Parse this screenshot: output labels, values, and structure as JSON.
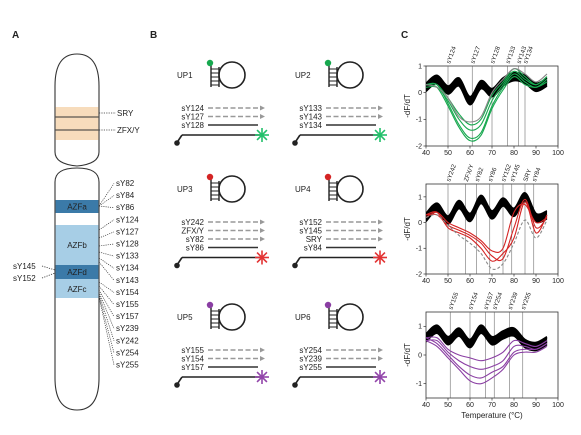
{
  "panel_a": {
    "letter": "A",
    "left_labels": [
      "sY145",
      "sY152"
    ],
    "band_labels": [
      "SRY",
      "ZFX/Y"
    ],
    "regions": [
      "AZFa",
      "AZFb",
      "AZFd",
      "AZFc"
    ],
    "marker_labels": [
      "sY82",
      "sY84",
      "sY86",
      "sY124",
      "sY127",
      "sY128",
      "sY133",
      "sY134",
      "sY143",
      "sY154",
      "sY155",
      "sY157",
      "sY239",
      "sY242",
      "sY254",
      "sY255"
    ],
    "colors": {
      "band": "#f7dcbc",
      "azf_light": "#a7cee6",
      "azf_dark": "#3b7aa8",
      "outline": "#333333"
    }
  },
  "panel_b": {
    "letter": "B",
    "probes": [
      {
        "name": "UP1",
        "color": "#17a84f",
        "star": "#22c06a",
        "targets": [
          "sY124",
          "sY127",
          "sY128"
        ]
      },
      {
        "name": "UP2",
        "color": "#17a84f",
        "star": "#22c06a",
        "targets": [
          "sY133",
          "sY143",
          "sY134"
        ]
      },
      {
        "name": "UP3",
        "color": "#d42424",
        "star": "#e33333",
        "targets": [
          "sY242",
          "ZFX/Y",
          "sY82",
          "sY86"
        ]
      },
      {
        "name": "UP4",
        "color": "#d42424",
        "star": "#e33333",
        "targets": [
          "sY152",
          "sY145",
          "SRY",
          "sY84"
        ]
      },
      {
        "name": "UP5",
        "color": "#8a3ea3",
        "star": "#9245aa",
        "targets": [
          "sY155",
          "sY154",
          "sY157"
        ]
      },
      {
        "name": "UP6",
        "color": "#8a3ea3",
        "star": "#9245aa",
        "targets": [
          "sY254",
          "sY239",
          "sY255"
        ]
      }
    ]
  },
  "panel_c": {
    "letter": "C",
    "chart_data": [
      {
        "type": "line",
        "ylabel": "-dF/dT",
        "xlim": [
          40,
          100
        ],
        "xticks": [
          40,
          50,
          60,
          70,
          80,
          90,
          100
        ],
        "markers": [
          {
            "label": "sY124",
            "x": 50
          },
          {
            "label": "sY127",
            "x": 61
          },
          {
            "label": "sY128",
            "x": 70
          },
          {
            "label": "sY133",
            "x": 77
          },
          {
            "label": "sY143",
            "x": 82
          },
          {
            "label": "sY134",
            "x": 85
          }
        ],
        "series": [
          {
            "color": "#000000",
            "band": true,
            "x": [
              40,
              45,
              50,
              55,
              60,
              65,
              70,
              75,
              80,
              85,
              90,
              95
            ],
            "y": [
              0.2,
              0.5,
              0.1,
              0.4,
              -0.3,
              0.3,
              0.0,
              0.4,
              0.6,
              0.5,
              0.2,
              0.4
            ]
          },
          {
            "color": "#17a84f",
            "x": [
              40,
              45,
              50,
              55,
              60,
              65,
              70,
              75,
              80,
              85,
              90,
              95
            ],
            "y": [
              0.3,
              0.3,
              -0.4,
              -1.2,
              -1.7,
              -1.5,
              -0.5,
              0.2,
              0.7,
              0.4,
              0.2,
              0.5
            ]
          },
          {
            "color": "#17a84f",
            "x": [
              40,
              45,
              50,
              55,
              60,
              65,
              70,
              75,
              80,
              85,
              90,
              95
            ],
            "y": [
              0.3,
              0.2,
              -0.5,
              -1.3,
              -1.8,
              -1.6,
              -0.6,
              0.1,
              0.6,
              0.3,
              0.2,
              0.4
            ]
          },
          {
            "color": "#17a84f",
            "x": [
              40,
              45,
              50,
              55,
              60,
              65,
              70,
              75,
              80,
              85,
              90,
              95
            ],
            "y": [
              0.2,
              0.2,
              -0.3,
              -1.0,
              -1.4,
              -1.2,
              -0.3,
              0.3,
              0.8,
              0.5,
              0.3,
              0.6
            ]
          },
          {
            "color": "#17a84f",
            "x": [
              40,
              45,
              50,
              55,
              60,
              65,
              70,
              75,
              80,
              85,
              90,
              95
            ],
            "y": [
              0.3,
              0.3,
              -0.2,
              -0.8,
              -1.2,
              -1.0,
              -0.1,
              0.4,
              0.9,
              0.6,
              0.3,
              0.6
            ]
          },
          {
            "color": "#888888",
            "x": [
              40,
              45,
              50,
              55,
              60,
              65,
              70,
              75,
              80,
              85,
              90,
              95
            ],
            "y": [
              0.3,
              0.2,
              -0.2,
              -0.9,
              -1.1,
              -0.9,
              0.0,
              0.5,
              0.9,
              0.7,
              0.4,
              0.7
            ]
          }
        ],
        "ylim": [
          -2,
          1
        ],
        "yticks": [
          -2,
          -1,
          0,
          1
        ]
      },
      {
        "type": "line",
        "ylabel": "-dF/dT",
        "xlim": [
          40,
          100
        ],
        "xticks": [
          40,
          50,
          60,
          70,
          80,
          90,
          100
        ],
        "markers": [
          {
            "label": "sY242",
            "x": 50
          },
          {
            "label": "ZFX/Y",
            "x": 58
          },
          {
            "label": "sY82",
            "x": 63
          },
          {
            "label": "sY86",
            "x": 69
          },
          {
            "label": "sY152",
            "x": 75
          },
          {
            "label": "sY145",
            "x": 79
          },
          {
            "label": "SRY",
            "x": 85
          },
          {
            "label": "sY84",
            "x": 89
          }
        ],
        "series": [
          {
            "color": "#000000",
            "band": true,
            "x": [
              40,
              45,
              50,
              55,
              60,
              65,
              70,
              75,
              80,
              85,
              90,
              95
            ],
            "y": [
              0.2,
              0.6,
              0.1,
              0.7,
              0.2,
              0.9,
              0.3,
              0.8,
              0.4,
              1.0,
              0.2,
              0.3
            ]
          },
          {
            "color": "#d42424",
            "x": [
              40,
              45,
              50,
              55,
              60,
              65,
              70,
              75,
              80,
              85,
              90,
              95
            ],
            "y": [
              0.3,
              0.4,
              -0.2,
              -0.4,
              -0.6,
              -1.0,
              -1.5,
              -1.2,
              -0.6,
              0.8,
              -0.4,
              0.3
            ]
          },
          {
            "color": "#d42424",
            "x": [
              40,
              45,
              50,
              55,
              60,
              65,
              70,
              75,
              80,
              85,
              90,
              95
            ],
            "y": [
              0.3,
              0.3,
              -0.1,
              -0.3,
              -0.5,
              -0.8,
              -1.3,
              -1.4,
              -0.2,
              0.9,
              -0.2,
              0.2
            ]
          },
          {
            "color": "#d42424",
            "x": [
              40,
              45,
              50,
              55,
              60,
              65,
              70,
              75,
              80,
              85,
              90,
              95
            ],
            "y": [
              0.2,
              0.4,
              0.0,
              -0.2,
              -0.4,
              -0.7,
              -1.1,
              -1.0,
              0.4,
              0.7,
              0.0,
              0.2
            ]
          },
          {
            "color": "#888888",
            "dashed": true,
            "x": [
              40,
              45,
              50,
              55,
              60,
              65,
              70,
              75,
              80,
              85,
              90,
              95
            ],
            "y": [
              0.2,
              0.3,
              -0.1,
              -0.5,
              -0.8,
              -1.2,
              -1.8,
              -1.6,
              -0.8,
              0.1,
              -0.6,
              0.1
            ]
          }
        ],
        "ylim": [
          -2,
          1.5
        ],
        "yticks": [
          -2,
          -1,
          0,
          1
        ]
      },
      {
        "type": "line",
        "ylabel": "-dF/dT",
        "xlabel": "Temperature (°C)",
        "xlim": [
          40,
          100
        ],
        "xticks": [
          40,
          50,
          60,
          70,
          80,
          90,
          100
        ],
        "markers": [
          {
            "label": "sY155",
            "x": 51
          },
          {
            "label": "sY154",
            "x": 60
          },
          {
            "label": "sY157",
            "x": 67
          },
          {
            "label": "sY254",
            "x": 71
          },
          {
            "label": "sY239",
            "x": 78
          },
          {
            "label": "sY255",
            "x": 84
          }
        ],
        "series": [
          {
            "color": "#000000",
            "band": true,
            "x": [
              40,
              45,
              50,
              55,
              60,
              65,
              70,
              75,
              80,
              85,
              90,
              95
            ],
            "y": [
              0.6,
              0.9,
              0.5,
              0.8,
              0.4,
              0.9,
              0.5,
              0.7,
              0.8,
              0.4,
              0.3,
              0.5
            ]
          },
          {
            "color": "#8a3ea3",
            "x": [
              40,
              45,
              50,
              55,
              60,
              65,
              70,
              75,
              80,
              85,
              90,
              95
            ],
            "y": [
              0.6,
              0.4,
              0.0,
              -0.4,
              -0.7,
              -0.8,
              -0.6,
              -0.4,
              0.1,
              0.2,
              0.2,
              0.4
            ]
          },
          {
            "color": "#8a3ea3",
            "x": [
              40,
              45,
              50,
              55,
              60,
              65,
              70,
              75,
              80,
              85,
              90,
              95
            ],
            "y": [
              0.5,
              0.3,
              -0.1,
              -0.5,
              -0.9,
              -1.0,
              -0.8,
              -0.5,
              0.0,
              0.1,
              0.1,
              0.3
            ]
          },
          {
            "color": "#8a3ea3",
            "x": [
              40,
              45,
              50,
              55,
              60,
              65,
              70,
              75,
              80,
              85,
              90,
              95
            ],
            "y": [
              0.5,
              0.5,
              0.1,
              -0.2,
              -0.4,
              -0.5,
              -0.4,
              -0.2,
              0.3,
              0.3,
              0.2,
              0.4
            ]
          },
          {
            "color": "#8a3ea3",
            "x": [
              40,
              45,
              50,
              55,
              60,
              65,
              70,
              75,
              80,
              85,
              90,
              95
            ],
            "y": [
              0.6,
              0.6,
              0.2,
              0.0,
              -0.1,
              -0.2,
              -0.1,
              0.1,
              0.5,
              0.4,
              0.3,
              0.5
            ]
          }
        ],
        "ylim": [
          -1.5,
          1.5
        ],
        "yticks": [
          -1,
          0,
          1
        ]
      }
    ]
  }
}
